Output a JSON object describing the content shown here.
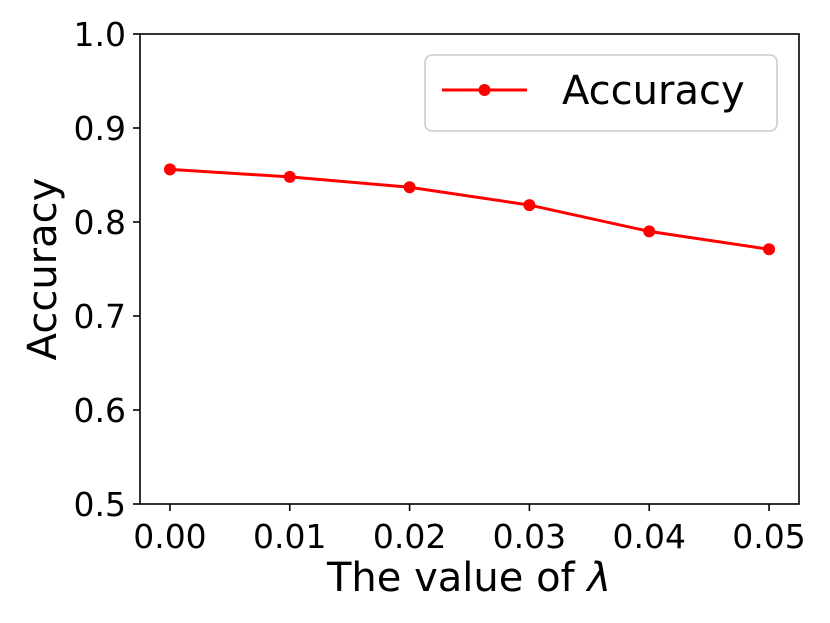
{
  "chart_data": {
    "type": "line",
    "x": [
      0.0,
      0.01,
      0.02,
      0.03,
      0.04,
      0.05
    ],
    "x_tick_labels": [
      "0.00",
      "0.01",
      "0.02",
      "0.03",
      "0.04",
      "0.05"
    ],
    "series": [
      {
        "name": "Accuracy",
        "values": [
          0.856,
          0.848,
          0.837,
          0.818,
          0.79,
          0.771
        ],
        "color": "#ff0000",
        "marker": "circle"
      }
    ],
    "y_ticks": [
      0.5,
      0.6,
      0.7,
      0.8,
      0.9,
      1.0
    ],
    "y_tick_labels": [
      "0.5",
      "0.6",
      "0.7",
      "0.8",
      "0.9",
      "1.0"
    ],
    "xlabel_prefix": "The value of ",
    "xlabel_symbol": "λ",
    "ylabel": "Accuracy",
    "xlim": [
      -0.0025,
      0.0525
    ],
    "ylim": [
      0.5,
      1.0
    ],
    "grid": false,
    "legend_position": "top-right"
  }
}
